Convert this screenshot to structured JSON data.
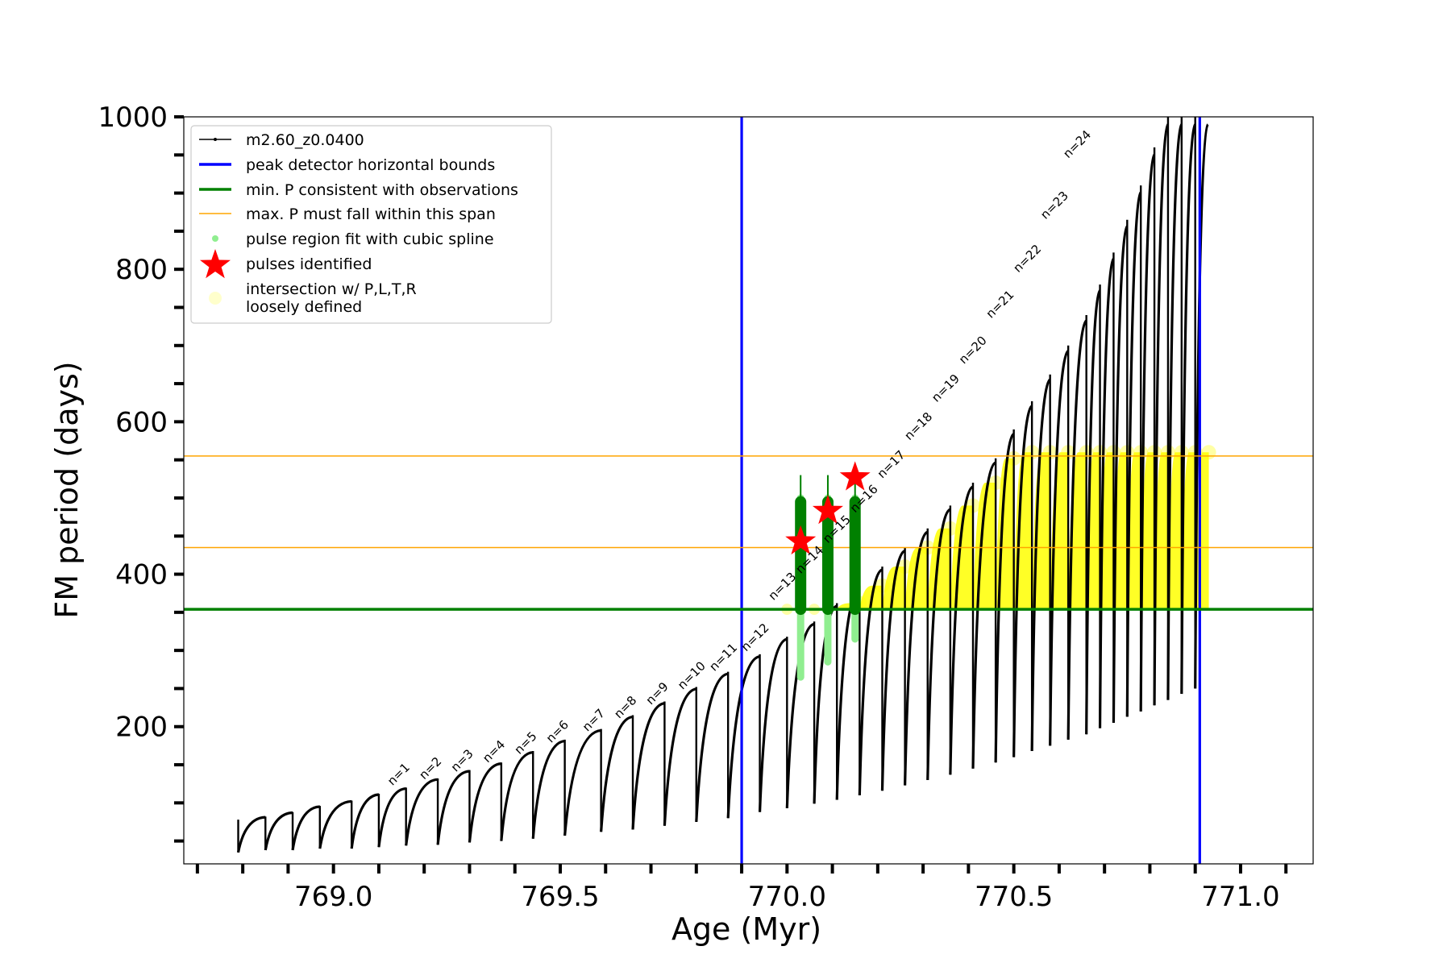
{
  "chart_data": {
    "type": "line",
    "title": "",
    "xlabel": "Age (Myr)",
    "ylabel": "FM period (days)",
    "xlim": [
      768.67,
      771.16
    ],
    "ylim": [
      20,
      1000
    ],
    "xticks": [
      769.0,
      769.5,
      770.0,
      770.5,
      771.0
    ],
    "xtick_labels": [
      "769.0",
      "769.5",
      "770.0",
      "770.5",
      "771.0"
    ],
    "yticks": [
      200,
      400,
      600,
      800,
      1000
    ],
    "ytick_labels": [
      "200",
      "400",
      "600",
      "800",
      "1000"
    ],
    "grid": false,
    "legend_position": "top-left",
    "legend": [
      {
        "label": "m2.60_z0.0400",
        "kind": "line-marker",
        "color": "#000000"
      },
      {
        "label": "peak detector horizontal bounds",
        "kind": "line",
        "color": "#0000ff"
      },
      {
        "label": "min. P consistent with observations",
        "kind": "line",
        "color": "#008000"
      },
      {
        "label": "max. P must fall within this span",
        "kind": "thin-line",
        "color": "#ffa500"
      },
      {
        "label": "pulse region fit with cubic spline",
        "kind": "dot",
        "color": "#90ee90"
      },
      {
        "label": "pulses identified",
        "kind": "star",
        "color": "#ff0000"
      },
      {
        "label": "intersection w/ P,L,T,R",
        "label2": "loosely defined",
        "kind": "circle",
        "color": "#ffffcc"
      }
    ],
    "series": [
      {
        "name": "m2.60_z0.0400",
        "color": "#000000",
        "pulses": [
          {
            "t": 768.79,
            "pmin": 35,
            "pmax": 78
          },
          {
            "t": 768.85,
            "pmin": 38,
            "pmax": 82
          },
          {
            "t": 768.91,
            "pmin": 38,
            "pmax": 88
          },
          {
            "t": 768.97,
            "pmin": 40,
            "pmax": 96
          },
          {
            "t": 769.04,
            "pmin": 40,
            "pmax": 103
          },
          {
            "t": 769.1,
            "pmin": 42,
            "pmax": 112
          },
          {
            "t": 769.16,
            "pmin": 44,
            "pmax": 120
          },
          {
            "t": 769.23,
            "pmin": 45,
            "pmax": 132
          },
          {
            "t": 769.3,
            "pmin": 48,
            "pmax": 143
          },
          {
            "t": 769.37,
            "pmin": 50,
            "pmax": 153
          },
          {
            "t": 769.44,
            "pmin": 53,
            "pmax": 168
          },
          {
            "t": 769.51,
            "pmin": 57,
            "pmax": 183
          },
          {
            "t": 769.59,
            "pmin": 62,
            "pmax": 197
          },
          {
            "t": 769.66,
            "pmin": 65,
            "pmax": 215
          },
          {
            "t": 769.73,
            "pmin": 70,
            "pmax": 233
          },
          {
            "t": 769.8,
            "pmin": 75,
            "pmax": 252
          },
          {
            "t": 769.87,
            "pmin": 80,
            "pmax": 272
          },
          {
            "t": 769.94,
            "pmin": 88,
            "pmax": 295
          },
          {
            "t": 770.0,
            "pmin": 93,
            "pmax": 318
          },
          {
            "t": 770.06,
            "pmin": 99,
            "pmax": 338
          },
          {
            "t": 770.11,
            "pmin": 104,
            "pmax": 362
          },
          {
            "t": 770.16,
            "pmin": 110,
            "pmax": 385
          },
          {
            "t": 770.21,
            "pmin": 116,
            "pmax": 410
          },
          {
            "t": 770.26,
            "pmin": 123,
            "pmax": 435
          },
          {
            "t": 770.31,
            "pmin": 130,
            "pmax": 460
          },
          {
            "t": 770.36,
            "pmin": 137,
            "pmax": 490
          },
          {
            "t": 770.41,
            "pmin": 145,
            "pmax": 520
          },
          {
            "t": 770.46,
            "pmin": 153,
            "pmax": 552
          },
          {
            "t": 770.5,
            "pmin": 160,
            "pmax": 590
          },
          {
            "t": 770.54,
            "pmin": 168,
            "pmax": 627
          },
          {
            "t": 770.58,
            "pmin": 175,
            "pmax": 662
          },
          {
            "t": 770.62,
            "pmin": 183,
            "pmax": 700
          },
          {
            "t": 770.66,
            "pmin": 190,
            "pmax": 740
          },
          {
            "t": 770.69,
            "pmin": 198,
            "pmax": 780
          },
          {
            "t": 770.72,
            "pmin": 205,
            "pmax": 822
          },
          {
            "t": 770.75,
            "pmin": 213,
            "pmax": 865
          },
          {
            "t": 770.78,
            "pmin": 220,
            "pmax": 910
          },
          {
            "t": 770.81,
            "pmin": 228,
            "pmax": 960
          },
          {
            "t": 770.84,
            "pmin": 235,
            "pmax": 1000
          },
          {
            "t": 770.87,
            "pmin": 243,
            "pmax": 1000
          },
          {
            "t": 770.9,
            "pmin": 250,
            "pmax": 1000
          }
        ]
      },
      {
        "name": "peak detector horizontal bounds",
        "color": "#0000ff",
        "x_values": [
          769.9,
          770.91
        ]
      },
      {
        "name": "min. P consistent with observations",
        "color": "#008000",
        "y": 354
      },
      {
        "name": "max. P must fall within this span",
        "color": "#ffa500",
        "y_values": [
          435,
          555
        ]
      },
      {
        "name": "pulse region fit with cubic spline",
        "color": "#90ee90",
        "segments": [
          {
            "x": 770.03,
            "ymin": 265,
            "ymax": 500
          },
          {
            "x": 770.09,
            "ymin": 285,
            "ymax": 500
          },
          {
            "x": 770.15,
            "ymin": 315,
            "ymax": 500
          }
        ]
      },
      {
        "name": "pulses identified",
        "color": "#ff0000",
        "points": [
          {
            "x": 770.03,
            "y": 443
          },
          {
            "x": 770.09,
            "y": 483
          },
          {
            "x": 770.15,
            "y": 527
          }
        ]
      },
      {
        "name": "intersection w/ P,L,T,R loosely defined",
        "color": "#ffff00",
        "region": {
          "x": [
            769.95,
            770.91
          ],
          "y": [
            354,
            560
          ]
        }
      }
    ],
    "annotations": [
      "n=1",
      "n=2",
      "n=3",
      "n=4",
      "n=5",
      "n=6",
      "n=7",
      "n=8",
      "n=9",
      "n=10",
      "n=11",
      "n=12",
      "n=13",
      "n=14",
      "n=15",
      "n=16",
      "n=17",
      "n=18",
      "n=19",
      "n=20",
      "n=21",
      "n=22",
      "n=23",
      "n=24"
    ],
    "annotation_anchors": [
      {
        "x": 769.13,
        "y": 122
      },
      {
        "x": 769.2,
        "y": 130
      },
      {
        "x": 769.27,
        "y": 140
      },
      {
        "x": 769.34,
        "y": 152
      },
      {
        "x": 769.41,
        "y": 163
      },
      {
        "x": 769.48,
        "y": 178
      },
      {
        "x": 769.56,
        "y": 193
      },
      {
        "x": 769.63,
        "y": 210
      },
      {
        "x": 769.7,
        "y": 228
      },
      {
        "x": 769.77,
        "y": 248
      },
      {
        "x": 769.84,
        "y": 272
      },
      {
        "x": 769.91,
        "y": 298
      },
      {
        "x": 769.97,
        "y": 365
      },
      {
        "x": 770.03,
        "y": 400
      },
      {
        "x": 770.09,
        "y": 440
      },
      {
        "x": 770.15,
        "y": 480
      },
      {
        "x": 770.21,
        "y": 525
      },
      {
        "x": 770.27,
        "y": 575
      },
      {
        "x": 770.33,
        "y": 625
      },
      {
        "x": 770.39,
        "y": 675
      },
      {
        "x": 770.45,
        "y": 735
      },
      {
        "x": 770.51,
        "y": 795
      },
      {
        "x": 770.57,
        "y": 865
      },
      {
        "x": 770.62,
        "y": 945
      }
    ]
  },
  "colors": {
    "axes": "#000000",
    "background": "#ffffff"
  }
}
